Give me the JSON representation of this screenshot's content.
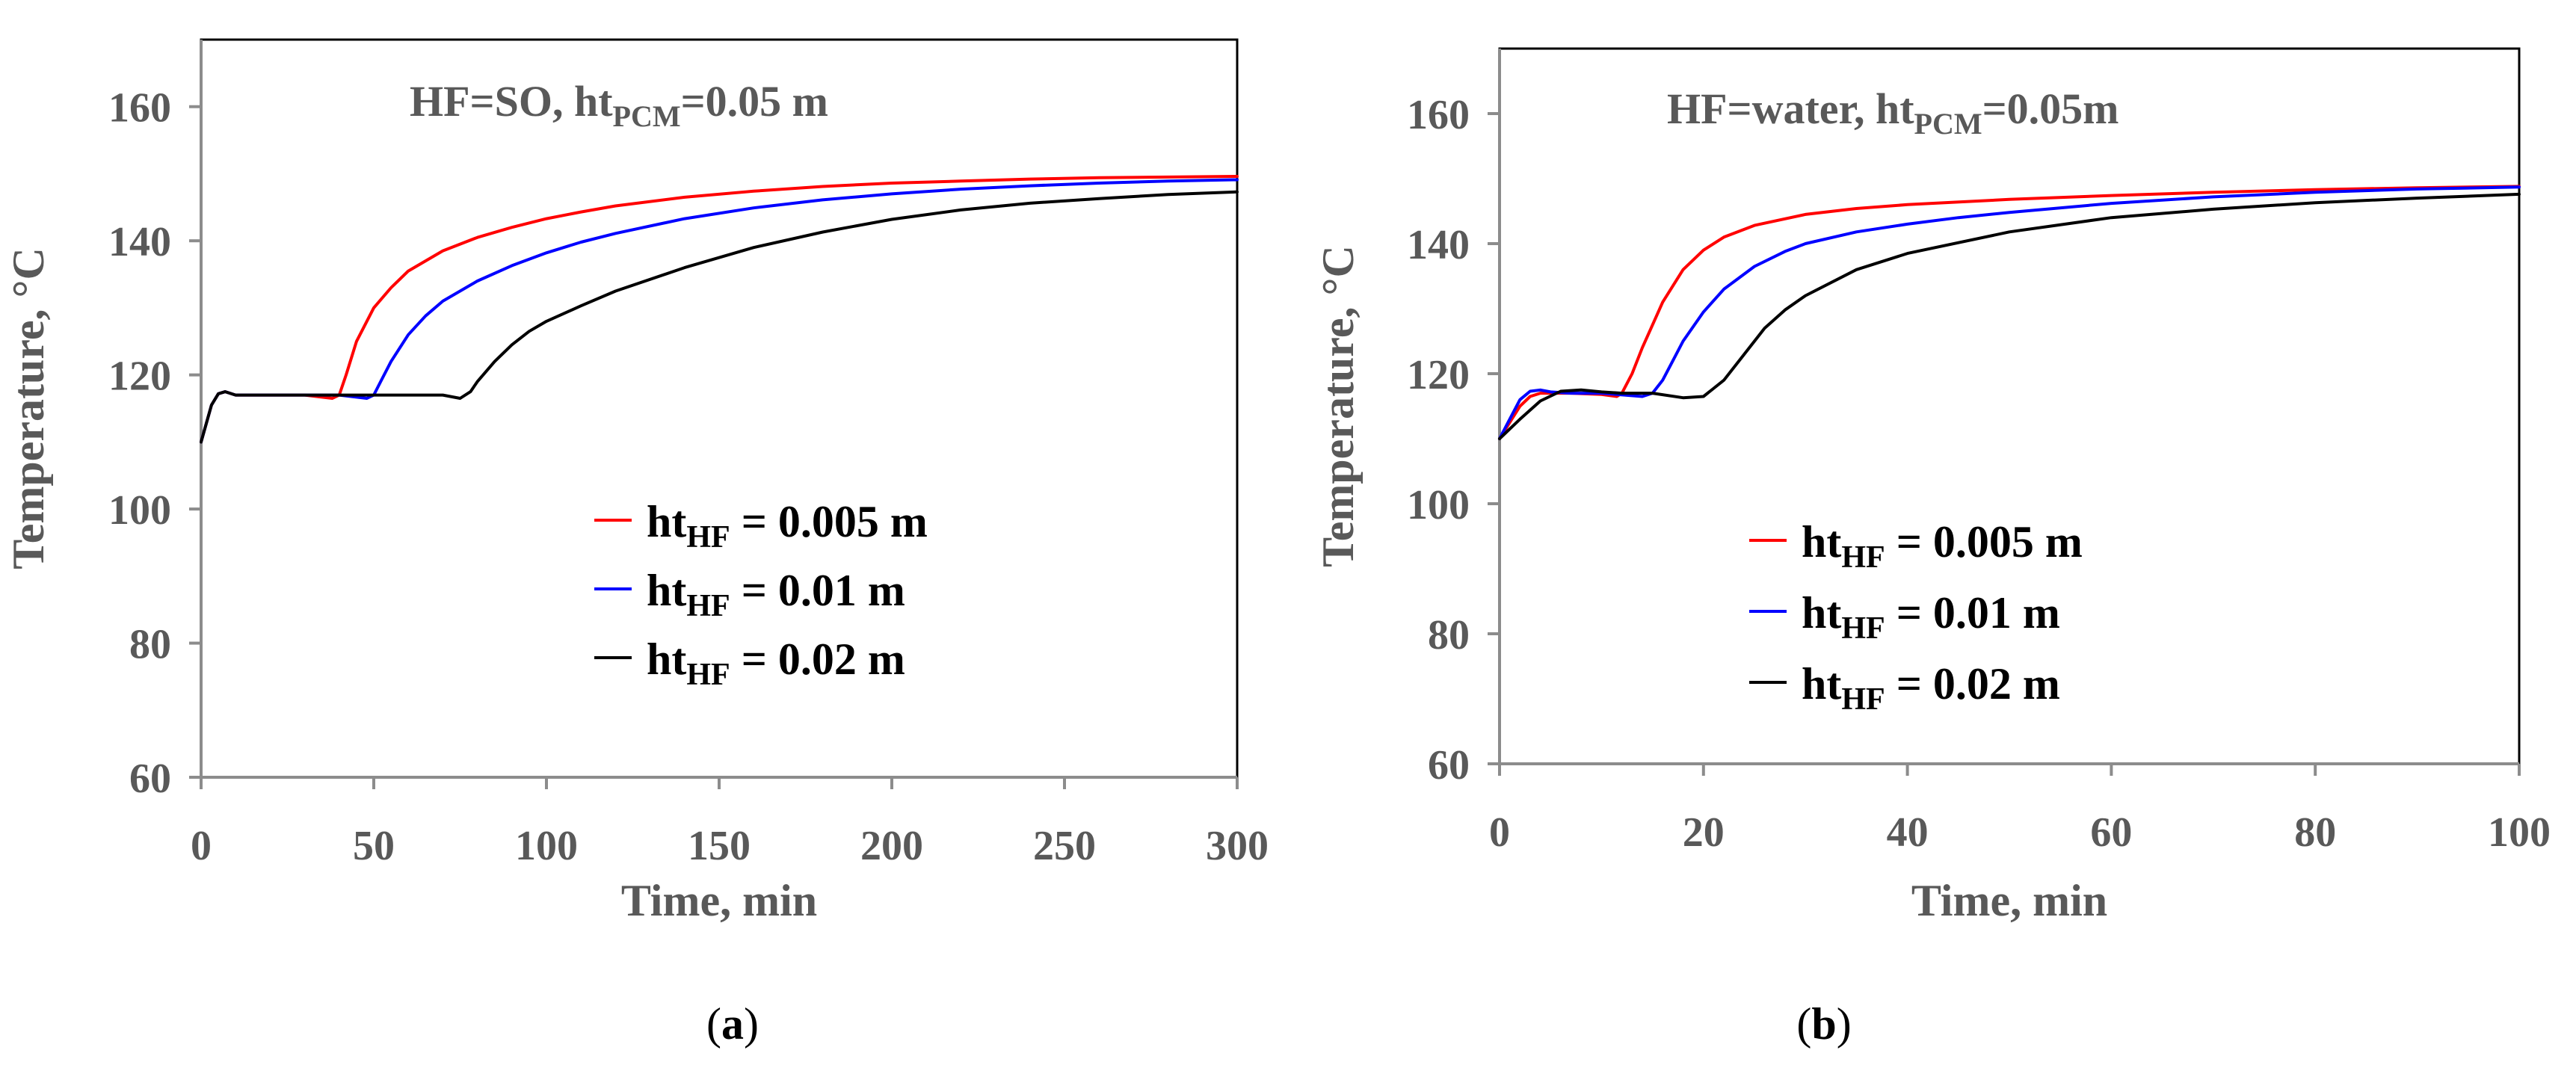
{
  "chart_data": [
    {
      "type": "line",
      "panel_label": "a",
      "annotation": {
        "main": "HF=SO, ht",
        "sub": "PCM",
        "tail": "=0.05 m"
      },
      "xlabel": "Time, min",
      "ylabel": "Temperature, °C",
      "xlim": [
        0,
        300
      ],
      "ylim": [
        60,
        170
      ],
      "xticks": [
        0,
        50,
        100,
        150,
        200,
        250,
        300
      ],
      "yticks": [
        60,
        80,
        100,
        120,
        140,
        160
      ],
      "legend_position": "lower-right",
      "series": [
        {
          "name": "ht_HF = 0.005 m",
          "label_main": "ht",
          "label_sub": "HF",
          "label_tail": " = 0.005 m",
          "color": "#ff0000",
          "x": [
            0,
            3,
            5,
            7,
            10,
            20,
            30,
            38,
            40,
            42,
            45,
            50,
            55,
            60,
            70,
            80,
            90,
            100,
            110,
            120,
            140,
            160,
            180,
            200,
            220,
            240,
            260,
            280,
            300
          ],
          "y": [
            110,
            115.5,
            117.2,
            117.5,
            117,
            117,
            117,
            116.5,
            117,
            120,
            125,
            130,
            133,
            135.5,
            138.5,
            140.5,
            142,
            143.3,
            144.3,
            145.2,
            146.5,
            147.4,
            148.1,
            148.6,
            148.9,
            149.2,
            149.4,
            149.5,
            149.6
          ]
        },
        {
          "name": "ht_HF = 0.01 m",
          "label_main": "ht",
          "label_sub": "HF",
          "label_tail": " = 0.01 m",
          "color": "#0000ff",
          "x": [
            0,
            3,
            5,
            7,
            10,
            20,
            30,
            40,
            48,
            50,
            52,
            55,
            60,
            65,
            70,
            80,
            90,
            100,
            110,
            120,
            140,
            160,
            180,
            200,
            220,
            240,
            260,
            280,
            300
          ],
          "y": [
            110,
            115.5,
            117.2,
            117.5,
            117,
            117,
            117,
            117,
            116.5,
            117,
            119,
            122,
            126,
            128.8,
            131,
            134,
            136.3,
            138.2,
            139.8,
            141.1,
            143.3,
            144.9,
            146.1,
            147,
            147.7,
            148.2,
            148.6,
            148.9,
            149.1
          ]
        },
        {
          "name": "ht_HF = 0.02 m",
          "label_main": "ht",
          "label_sub": "HF",
          "label_tail": " = 0.02 m",
          "color": "#000000",
          "x": [
            0,
            3,
            5,
            7,
            10,
            20,
            40,
            60,
            70,
            75,
            78,
            80,
            85,
            90,
            95,
            100,
            110,
            120,
            140,
            160,
            180,
            200,
            220,
            240,
            260,
            280,
            300
          ],
          "y": [
            110,
            115.5,
            117.2,
            117.5,
            117,
            117,
            117,
            117,
            117,
            116.5,
            117.5,
            119,
            122,
            124.5,
            126.5,
            128,
            130.3,
            132.5,
            136,
            139,
            141.3,
            143.2,
            144.6,
            145.6,
            146.3,
            146.9,
            147.3
          ]
        }
      ]
    },
    {
      "type": "line",
      "panel_label": "b",
      "annotation": {
        "main": "HF=water, ht",
        "sub": "PCM",
        "tail": "=0.05m"
      },
      "xlabel": "Time, min",
      "ylabel": "Temperature, °C",
      "xlim": [
        0,
        100
      ],
      "ylim": [
        60,
        170
      ],
      "xticks": [
        0,
        20,
        40,
        60,
        80,
        100
      ],
      "yticks": [
        60,
        80,
        100,
        120,
        140,
        160
      ],
      "legend_position": "lower-right",
      "series": [
        {
          "name": "ht_HF = 0.005 m",
          "label_main": "ht",
          "label_sub": "HF",
          "label_tail": " = 0.005 m",
          "color": "#ff0000",
          "x": [
            0,
            1,
            2,
            3,
            4,
            5,
            7,
            10,
            11.5,
            12,
            13,
            14,
            15,
            16,
            18,
            20,
            22,
            25,
            30,
            35,
            40,
            50,
            60,
            70,
            80,
            90,
            100
          ],
          "y": [
            110,
            112.5,
            115,
            116.5,
            117,
            117,
            117,
            116.8,
            116.5,
            117,
            120,
            124,
            127.5,
            131,
            136,
            139,
            141,
            142.8,
            144.5,
            145.4,
            146,
            146.8,
            147.4,
            147.9,
            148.3,
            148.6,
            148.8
          ]
        },
        {
          "name": "ht_HF = 0.01 m",
          "label_main": "ht",
          "label_sub": "HF",
          "label_tail": " = 0.01 m",
          "color": "#0000ff",
          "x": [
            0,
            1,
            2,
            3,
            4,
            5,
            7,
            10,
            14,
            15,
            16,
            17,
            18,
            20,
            22,
            25,
            28,
            30,
            35,
            40,
            45,
            50,
            60,
            70,
            80,
            90,
            100
          ],
          "y": [
            110,
            113,
            116,
            117.3,
            117.5,
            117.2,
            117,
            117,
            116.5,
            117,
            119,
            122,
            125,
            129.5,
            133,
            136.5,
            138.8,
            140,
            141.8,
            143,
            144,
            144.8,
            146.2,
            147.2,
            147.9,
            148.4,
            148.7
          ]
        },
        {
          "name": "ht_HF = 0.02 m",
          "label_main": "ht",
          "label_sub": "HF",
          "label_tail": " = 0.02 m",
          "color": "#000000",
          "x": [
            0,
            2,
            4,
            6,
            8,
            10,
            12,
            15,
            18,
            20,
            22,
            24,
            26,
            28,
            30,
            35,
            40,
            50,
            60,
            70,
            80,
            90,
            100
          ],
          "y": [
            110,
            113,
            115.8,
            117.3,
            117.5,
            117.2,
            117,
            117,
            116.3,
            116.5,
            119,
            123,
            127,
            129.8,
            132,
            136,
            138.5,
            141.8,
            144,
            145.3,
            146.3,
            147,
            147.6
          ]
        }
      ]
    }
  ]
}
